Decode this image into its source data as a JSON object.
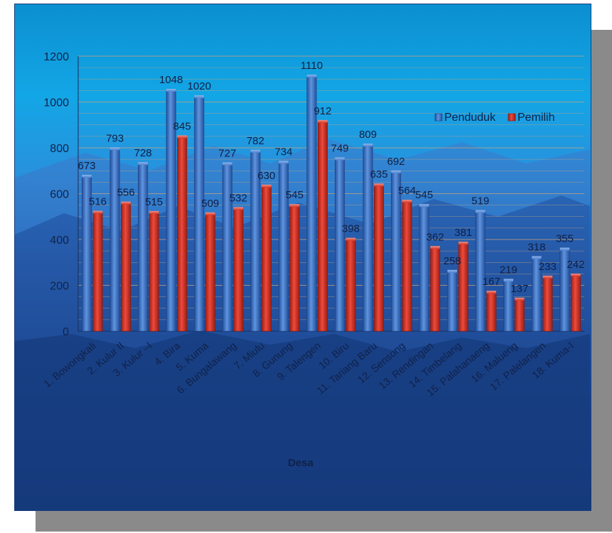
{
  "chart_data": {
    "type": "bar",
    "title": "",
    "xlabel": "Desa",
    "ylabel": "",
    "ylim": [
      0,
      1200
    ],
    "yticks": [
      0,
      200,
      400,
      600,
      800,
      1000,
      1200
    ],
    "grid": true,
    "legend_position": "top-right",
    "categories": [
      "1.   Bowongkali",
      "2.   Kulur II",
      "3.   Kulur –I",
      "4.   Bira",
      "5.   Kuma",
      "6.   Bungalawang",
      "7.   Miulu",
      "8.   Gunung",
      "9.   Talengen",
      "10.   Biru",
      "11.  Tariang Baru",
      "12.  Sensong",
      "13.  Rendingan",
      "14.  Timbelang",
      "15.  Palahanaeng",
      "16.  Malueng",
      "17.  Palelangen",
      "18.  Kuma-I"
    ],
    "series": [
      {
        "name": "Penduduk",
        "color": "#3b73c8",
        "values": [
          673,
          793,
          728,
          1048,
          1020,
          727,
          782,
          734,
          1110,
          749,
          809,
          692,
          545,
          258,
          519,
          219,
          318,
          355
        ]
      },
      {
        "name": "Pemilih",
        "color": "#d63a2c",
        "values": [
          516,
          556,
          515,
          845,
          509,
          532,
          630,
          545,
          912,
          398,
          635,
          564,
          362,
          381,
          167,
          137,
          233,
          242
        ]
      }
    ]
  }
}
